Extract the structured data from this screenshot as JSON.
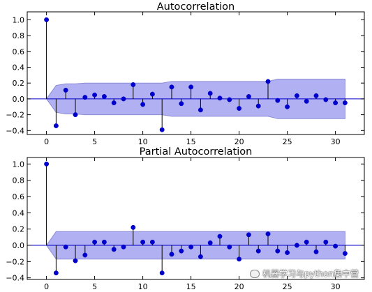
{
  "chart_data": [
    {
      "type": "stem",
      "title": "Autocorrelation",
      "x": [
        0,
        1,
        2,
        3,
        4,
        5,
        6,
        7,
        8,
        9,
        10,
        11,
        12,
        13,
        14,
        15,
        16,
        17,
        18,
        19,
        20,
        21,
        22,
        23,
        24,
        25,
        26,
        27,
        28,
        29,
        30,
        31
      ],
      "values": [
        1.0,
        -0.34,
        0.11,
        -0.2,
        0.02,
        0.05,
        0.03,
        -0.05,
        0.0,
        0.18,
        -0.07,
        0.06,
        -0.39,
        0.15,
        -0.06,
        0.15,
        -0.14,
        0.07,
        0.01,
        -0.01,
        -0.12,
        0.03,
        -0.09,
        0.22,
        -0.02,
        -0.1,
        0.04,
        -0.03,
        0.04,
        -0.01,
        -0.05,
        -0.05
      ],
      "confidence_band": {
        "x": [
          0,
          1,
          2,
          3,
          4,
          5,
          6,
          7,
          8,
          9,
          10,
          11,
          12,
          13,
          14,
          15,
          16,
          17,
          18,
          19,
          20,
          21,
          22,
          23,
          24,
          25,
          26,
          27,
          28,
          29,
          30,
          31
        ],
        "upper": [
          0.0,
          0.17,
          0.19,
          0.19,
          0.2,
          0.2,
          0.2,
          0.2,
          0.2,
          0.2,
          0.2,
          0.2,
          0.2,
          0.22,
          0.22,
          0.22,
          0.22,
          0.22,
          0.22,
          0.22,
          0.22,
          0.22,
          0.22,
          0.22,
          0.25,
          0.25,
          0.25,
          0.25,
          0.25,
          0.25,
          0.25,
          0.25
        ]
      },
      "xlim": [
        -2,
        33
      ],
      "ylim": [
        -0.45,
        1.1
      ],
      "xticks": [
        0,
        5,
        10,
        15,
        20,
        25,
        30
      ],
      "yticks": [
        1.0,
        0.8,
        0.6,
        0.4,
        0.2,
        0.0,
        -0.2,
        -0.4
      ],
      "xtick_labels": [
        "0",
        "5",
        "10",
        "15",
        "20",
        "25",
        "30"
      ],
      "ytick_labels": [
        "1.0",
        "0.8",
        "0.6",
        "0.4",
        "0.2",
        "0.0",
        "−0.2",
        "−0.4"
      ],
      "grid": false,
      "colors": {
        "marker": "#0000cc",
        "stem": "#000000",
        "band": "#b0b0f2",
        "band_edge": "#8c8cd6",
        "zero_line": "#0000cc"
      }
    },
    {
      "type": "stem",
      "title": "Partial Autocorrelation",
      "x": [
        0,
        1,
        2,
        3,
        4,
        5,
        6,
        7,
        8,
        9,
        10,
        11,
        12,
        13,
        14,
        15,
        16,
        17,
        18,
        19,
        20,
        21,
        22,
        23,
        24,
        25,
        26,
        27,
        28,
        29,
        30,
        31
      ],
      "values": [
        1.0,
        -0.34,
        -0.02,
        -0.19,
        -0.12,
        0.04,
        0.04,
        -0.05,
        -0.02,
        0.22,
        0.04,
        0.04,
        -0.34,
        -0.11,
        -0.07,
        -0.02,
        -0.14,
        0.03,
        0.11,
        -0.02,
        -0.17,
        0.13,
        -0.07,
        0.14,
        -0.07,
        -0.09,
        0.0,
        0.04,
        -0.08,
        0.04,
        -0.01,
        -0.1
      ],
      "confidence_band": {
        "x": [
          0,
          1,
          2,
          3,
          4,
          5,
          6,
          7,
          8,
          9,
          10,
          11,
          12,
          13,
          14,
          15,
          16,
          17,
          18,
          19,
          20,
          21,
          22,
          23,
          24,
          25,
          26,
          27,
          28,
          29,
          30,
          31
        ],
        "upper": [
          0.0,
          0.17,
          0.17,
          0.17,
          0.17,
          0.17,
          0.17,
          0.17,
          0.17,
          0.17,
          0.17,
          0.17,
          0.17,
          0.17,
          0.17,
          0.17,
          0.17,
          0.17,
          0.17,
          0.17,
          0.17,
          0.17,
          0.17,
          0.17,
          0.17,
          0.17,
          0.17,
          0.17,
          0.17,
          0.17,
          0.17,
          0.17
        ]
      },
      "xlim": [
        -2,
        33
      ],
      "ylim": [
        -0.42,
        1.08
      ],
      "xticks": [
        0,
        5,
        10,
        15,
        20,
        25,
        30
      ],
      "yticks": [
        1.0,
        0.8,
        0.6,
        0.4,
        0.2,
        0.0,
        -0.2,
        -0.4
      ],
      "xtick_labels": [
        "0",
        "5",
        "10",
        "15",
        "20",
        "25",
        "30"
      ],
      "ytick_labels": [
        "1.0",
        "0.8",
        "0.6",
        "0.4",
        "0.2",
        "0.0",
        "−0.2",
        "−0.4"
      ],
      "grid": false,
      "colors": {
        "marker": "#0000cc",
        "stem": "#000000",
        "band": "#b0b0f2",
        "band_edge": "#8c8cd6",
        "zero_line": "#0000cc"
      }
    }
  ],
  "watermark": {
    "text": "机器学习与python集中营",
    "icon": "wechat-icon"
  }
}
